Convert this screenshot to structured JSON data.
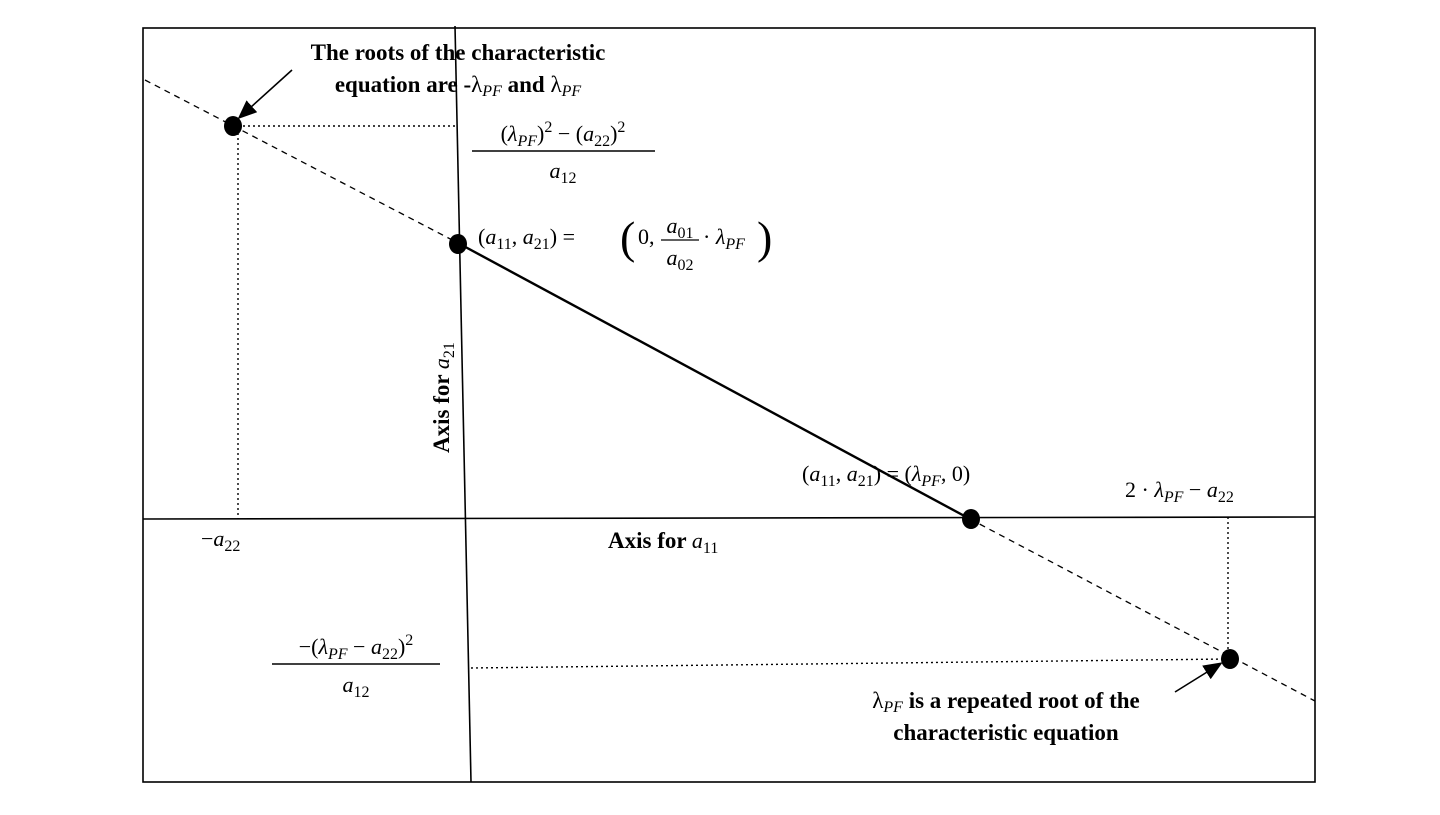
{
  "diagram": {
    "axes": {
      "horizontal_label_prefix": "Axis for ",
      "horizontal_label_var": "a",
      "horizontal_label_sub": "11",
      "vertical_label_prefix": "Axis for ",
      "vertical_label_var": "a",
      "vertical_label_sub": "21"
    },
    "annotations": {
      "roots_line1": "The roots of the characteristic",
      "roots_line2_a": "equation are -",
      "roots_line2_b": " and ",
      "repeated_line1": " is a repeated root of the",
      "repeated_line2": "characteristic equation"
    },
    "symbols": {
      "lambda": "λ",
      "pf": "PF",
      "minus": "−",
      "cdot": "·",
      "equals": "=",
      "a": "a",
      "s11": "11",
      "s21": "21",
      "s22": "22",
      "s12": "12",
      "s01": "01",
      "s02": "02",
      "zero": "0",
      "two": "2",
      "sq": "2"
    },
    "point_labels": {
      "p_intercept": "(a11, a21) = (0, a01/a02 · λPF)",
      "p_root": "(a11, a21) = (λPF, 0)",
      "tick_neg_a22": "−a22",
      "tick_2lambda": "2 · λPF − a22",
      "frac_top": "((λPF)^2 − (a22)^2) / a12",
      "frac_bottom": "−(λPF − a22)^2 / a12"
    }
  }
}
